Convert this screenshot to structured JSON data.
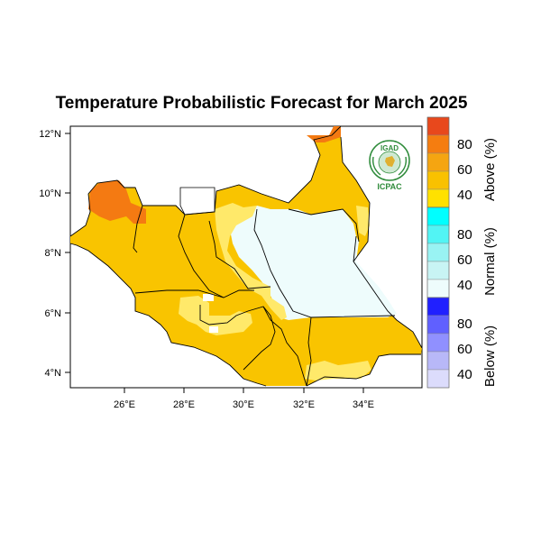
{
  "title": "Temperature Probabilistic Forecast for March 2025",
  "logo": {
    "top_text": "IGAD",
    "bottom_text": "ICPAC"
  },
  "x_ticks": [
    "26°E",
    "28°E",
    "30°E",
    "32°E",
    "34°E"
  ],
  "y_ticks": [
    "12°N",
    "10°N",
    "8°N",
    "6°N",
    "4°N"
  ],
  "colorbar": {
    "above": {
      "title": "Above (%)",
      "labels": [
        "80",
        "60",
        "40"
      ],
      "colors": [
        "#e8481c",
        "#f57d10",
        "#f5a511",
        "#f9c100",
        "#ffe100"
      ]
    },
    "normal": {
      "title": "Normal (%)",
      "labels": [
        "80",
        "60",
        "40"
      ],
      "colors": [
        "#00ffff",
        "#52f4f4",
        "#99f3f3",
        "#c8f4f4",
        "#eefcfc"
      ]
    },
    "below": {
      "title": "Below (%)",
      "labels": [
        "80",
        "60",
        "40"
      ],
      "colors": [
        "#2020ff",
        "#6060ff",
        "#9090ff",
        "#b8b8f8",
        "#dcdcfc"
      ]
    }
  },
  "legend_colors": {
    "above_40_50": "#f9c400",
    "above_50_60": "#f9ab00",
    "above_70_80": "#f47a12",
    "normal_40": "#eefcfc",
    "highlight_40": "#ffe96a"
  }
}
